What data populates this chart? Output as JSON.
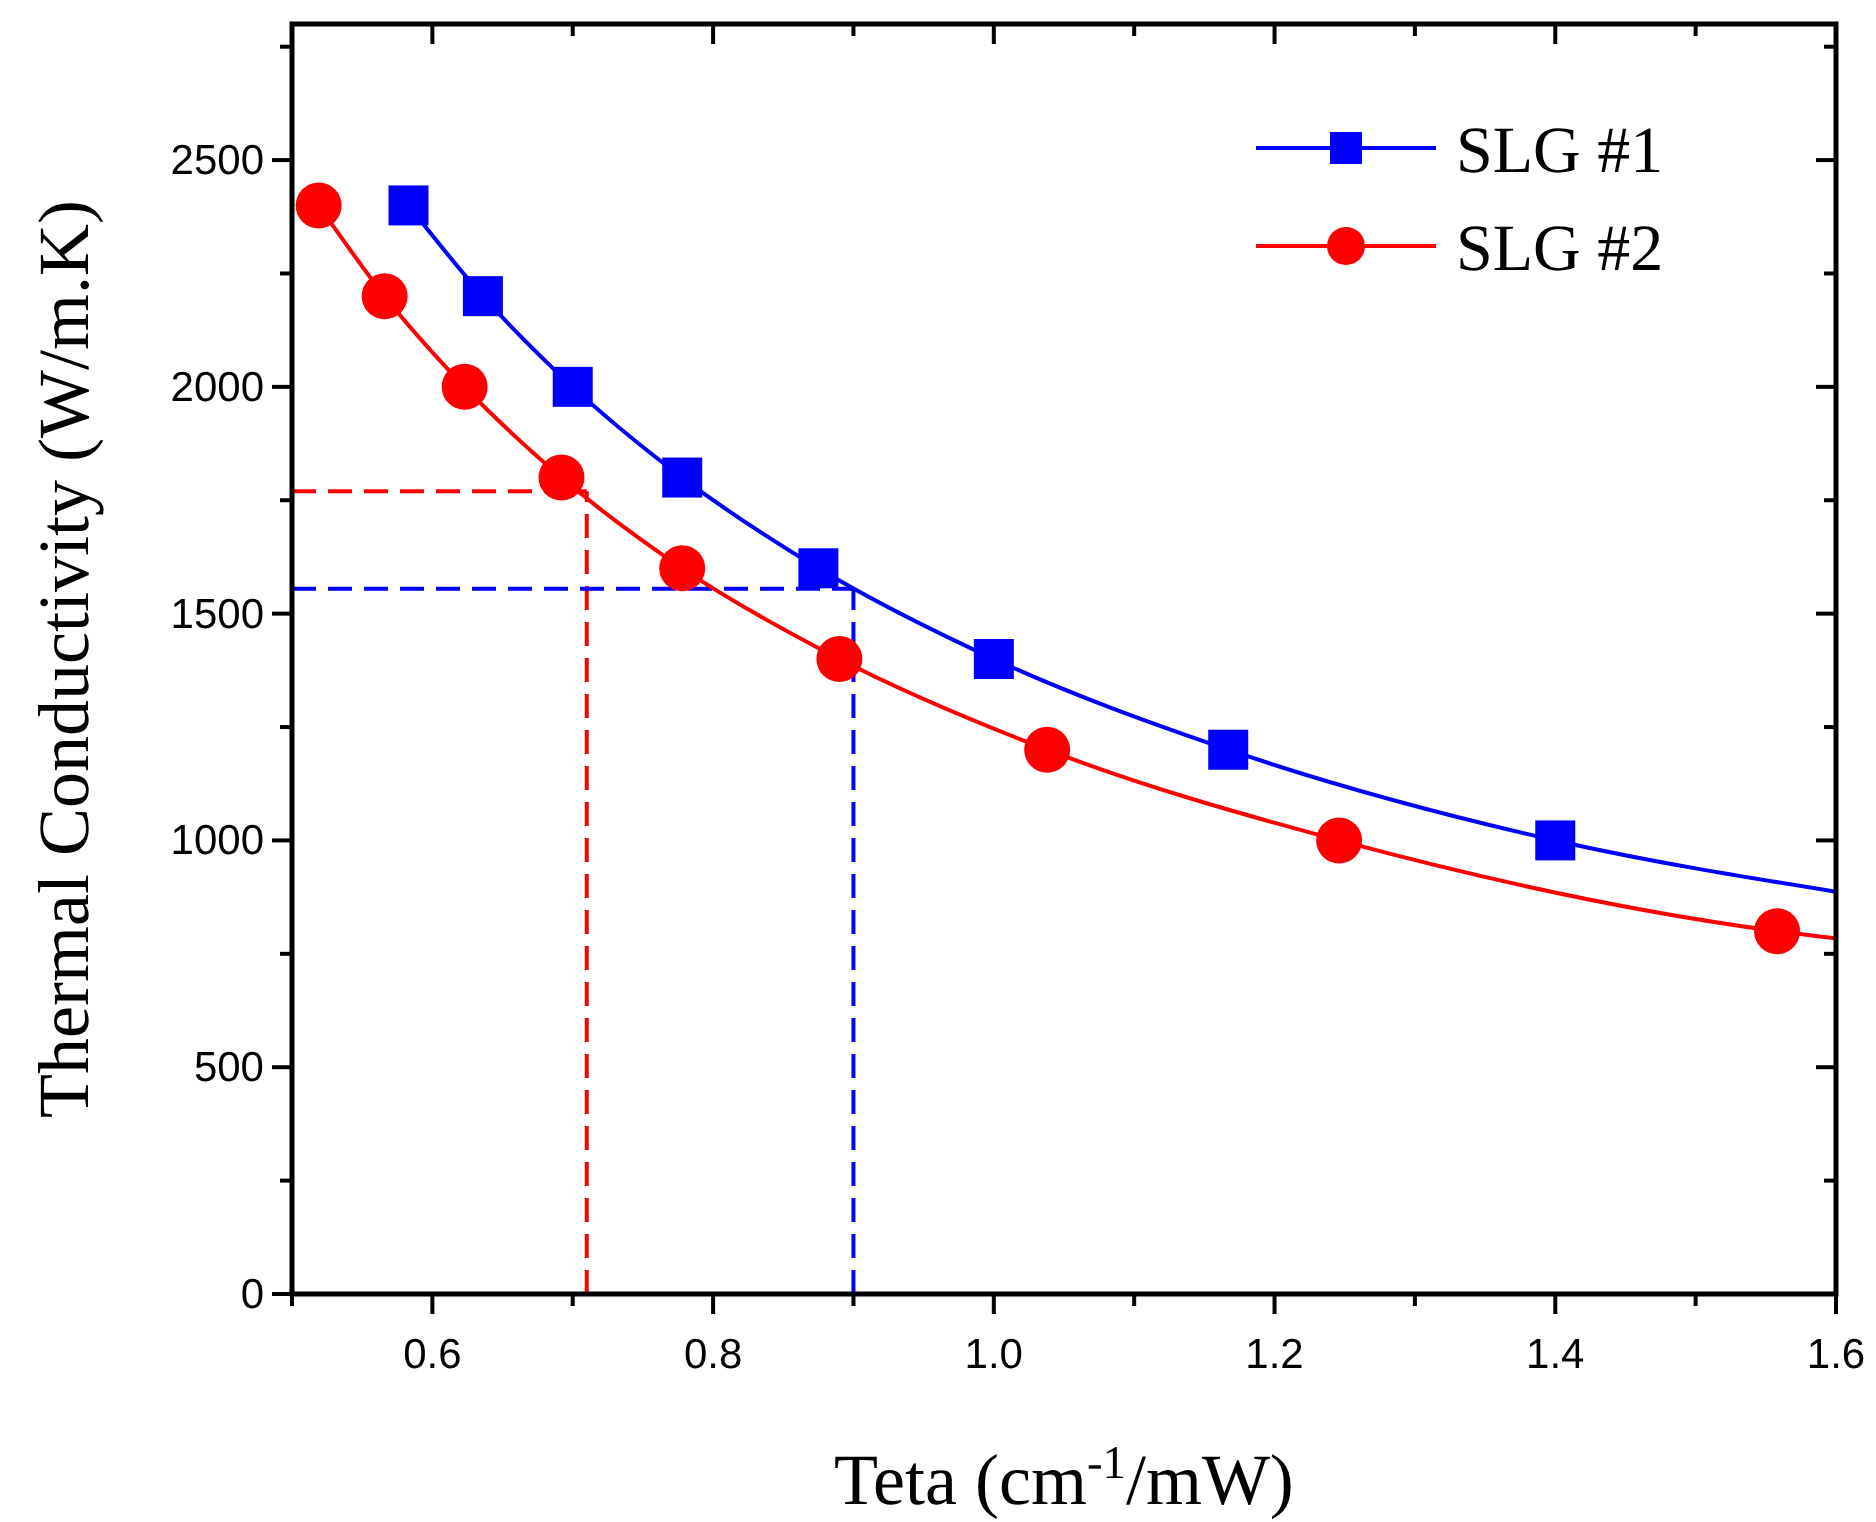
{
  "chart_data": {
    "type": "scatter",
    "xlabel": "Teta (cm$^{-1}$/mW)",
    "ylabel": "Thermal Conductivity (W/m.K)",
    "xlim": [
      0.5,
      1.6
    ],
    "ylim": [
      0,
      2800
    ],
    "xticks": [
      {
        "value": 0.5,
        "label": null
      },
      0.6,
      {
        "value": 0.7,
        "label": null
      },
      0.8,
      {
        "value": 0.9,
        "label": null
      },
      {
        "value": 1.0,
        "label": "1.0"
      },
      {
        "value": 1.1,
        "label": null
      },
      1.2,
      {
        "value": 1.3,
        "label": null
      },
      1.4,
      {
        "value": 1.5,
        "label": null
      },
      1.6
    ],
    "yticks": [
      0,
      {
        "value": 250,
        "label": null
      },
      500,
      {
        "value": 750,
        "label": null
      },
      1000,
      {
        "value": 1250,
        "label": null
      },
      1500,
      {
        "value": 1750,
        "label": null
      },
      2000,
      {
        "value": 2250,
        "label": null
      },
      2500,
      {
        "value": 2750,
        "label": null
      }
    ],
    "grid": false,
    "legend": "top right",
    "series": [
      {
        "type": "line",
        "color": "#0000ff",
        "marker": "none",
        "x": [
          0.583,
          0.636,
          0.7,
          0.778,
          0.875,
          1.0,
          1.167,
          1.4,
          1.6
        ],
        "values": [
          2400,
          2200,
          2000,
          1800,
          1600,
          1400,
          1200,
          1000,
          887
        ]
      },
      {
        "type": "line",
        "color": "#ff0000",
        "marker": "none",
        "x": [
          0.519,
          0.566,
          0.623,
          0.692,
          0.778,
          0.89,
          1.038,
          1.246,
          1.558,
          1.6
        ],
        "values": [
          2400,
          2200,
          2000,
          1800,
          1600,
          1400,
          1200,
          1000,
          800,
          784
        ]
      },
      {
        "name": "SLG #1",
        "color": "#0000ff",
        "marker": "square",
        "x": [
          0.583,
          0.636,
          0.7,
          0.778,
          0.875,
          1.0,
          1.167,
          1.4
        ],
        "values": [
          2400,
          2200,
          2000,
          1800,
          1600,
          1400,
          1200,
          1000
        ]
      },
      {
        "name": "SLG #2",
        "color": "#ff0000",
        "marker": "circle",
        "x": [
          0.519,
          0.566,
          0.623,
          0.692,
          0.778,
          0.89,
          1.038,
          1.246,
          1.558
        ],
        "values": [
          2400,
          2200,
          2000,
          1800,
          1600,
          1400,
          1200,
          1000,
          800
        ]
      }
    ],
    "ref_lines": [
      {
        "axis": "y",
        "value": 1770,
        "color": "#ff0000",
        "line_style": "dashed"
      },
      {
        "axis": "x",
        "value": 0.71,
        "color": "#ff0000",
        "line_style": "dashed"
      },
      {
        "axis": "y",
        "value": 1555,
        "color": "#0000ff",
        "line_style": "dashed"
      },
      {
        "axis": "x",
        "value": 0.9,
        "color": "#0000ff",
        "line_style": "dashed"
      }
    ]
  }
}
